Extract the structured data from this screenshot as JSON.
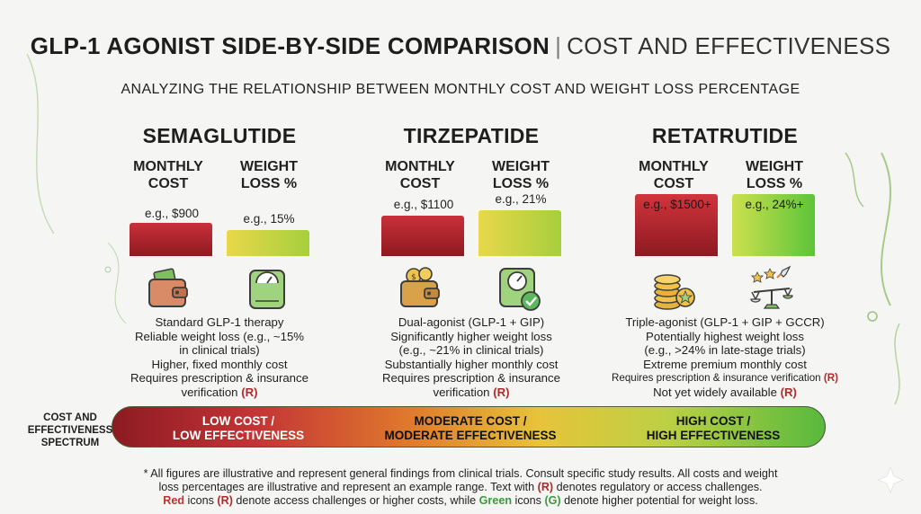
{
  "title": {
    "main": "GLP-1 AGONIST SIDE-BY-SIDE COMPARISON",
    "separator": "|",
    "sub": "COST AND EFFECTIVENESS"
  },
  "subtitle": "ANALYZING THE RELATIONSHIP BETWEEN MONTHLY COST AND WEIGHT LOSS PERCENTAGE",
  "drugs": [
    {
      "name": "SEMAGLUTIDE",
      "cost_header": [
        "MONTHLY",
        "COST"
      ],
      "wl_header": [
        "WEIGHT",
        "LOSS %"
      ],
      "cost_label": "e.g., $900",
      "wl_label": "e.g., 15%",
      "cost_value": 900,
      "wl_value": 15,
      "cost_icon": "wallet-icon",
      "wl_icon": "scale-icon",
      "desc": [
        "Standard GLP-1 therapy",
        "Reliable weight loss (e.g., ~15%",
        "in clinical trials)",
        "Higher, fixed monthly cost",
        "Requires prescription & insurance",
        "verification"
      ],
      "flag": "(R)"
    },
    {
      "name": "TIRZEPATIDE",
      "cost_header": [
        "MONTHLY",
        "COST"
      ],
      "wl_header": [
        "WEIGHT",
        "LOSS %"
      ],
      "cost_label": "e.g., $1100",
      "wl_label": "e.g., 21%",
      "cost_value": 1100,
      "wl_value": 21,
      "cost_icon": "wallet-coins-icon",
      "wl_icon": "scale-check-icon",
      "desc": [
        "Dual-agonist (GLP-1 + GIP)",
        "Significantly higher weight loss",
        "(e.g., ~21% in clinical trials)",
        "Substantially higher monthly cost",
        "Requires prescription & insurance",
        "verification"
      ],
      "flag": "(R)"
    },
    {
      "name": "RETATRUTIDE",
      "cost_header": [
        "MONTHLY",
        "COST"
      ],
      "wl_header": [
        "WEIGHT",
        "LOSS %"
      ],
      "cost_label": "e.g., $1500+",
      "wl_label": "e.g., 24%+",
      "cost_value": 1500,
      "wl_value": 24,
      "cost_icon": "coin-stack-icon",
      "wl_icon": "balance-rocket-icon",
      "desc": [
        "Triple-agonist (GLP-1 + GIP + GCCR)",
        "Potentially highest weight loss",
        "(e.g., >24% in late-stage trials)",
        "Extreme premium monthly cost",
        "Requires prescription & insurance verification",
        "Not yet widely available"
      ],
      "flag": "(R)"
    }
  ],
  "spectrum": {
    "label": [
      "COST AND",
      "EFFECTIVENESS",
      "SPECTRUM"
    ],
    "items": [
      [
        "LOW COST /",
        "LOW EFFECTIVENESS"
      ],
      [
        "MODERATE COST /",
        "MODERATE EFFECTIVENESS"
      ],
      [
        "HIGH COST /",
        "HIGH EFFECTIVENESS"
      ]
    ]
  },
  "footnote": {
    "line1": "* All figures are illustrative and represent general findings from clinical trials. Consult specific study results. All costs and weight",
    "line2_a": "loss percentages are illustrative and represent an example range. Text with ",
    "line2_r": "(R)",
    "line2_b": " denotes regulatory or access challenges.",
    "line3_red": "Red",
    "line3_a": " icons ",
    "line3_r": "(R)",
    "line3_b": " denote access challenges or higher costs, while ",
    "line3_green": "Green",
    "line3_c": " icons ",
    "line3_g": "(G)",
    "line3_d": " denote higher potential for weight loss."
  },
  "colors": {
    "cost_bar": "#a8232a",
    "wl_bar_low": "#e8d84a",
    "wl_bar_high": "#5cc43a",
    "regulatory_flag": "#b02a2a"
  }
}
